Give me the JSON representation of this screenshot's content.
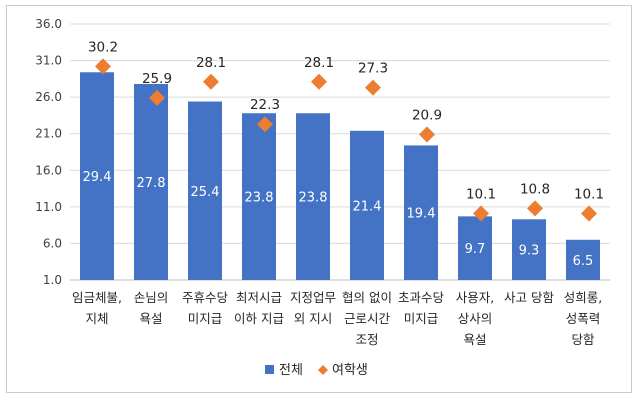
{
  "chart_data": {
    "type": "bar",
    "categories": [
      [
        "임금체불,",
        "지체"
      ],
      [
        "손님의",
        "욕설"
      ],
      [
        "주휴수당",
        "미지급"
      ],
      [
        "최저시급",
        "이하 지급"
      ],
      [
        "지정업무",
        "외 지시"
      ],
      [
        "협의 없이",
        "근로시간",
        "조정"
      ],
      [
        "초과수당",
        "미지급"
      ],
      [
        "사용자,",
        "상사의",
        "욕설"
      ],
      [
        "사고 당함"
      ],
      [
        "성희롱,",
        "성폭력",
        "당함"
      ]
    ],
    "series": [
      {
        "name": "전체",
        "type": "bar",
        "color": "#4472c4",
        "values": [
          29.4,
          27.8,
          25.4,
          23.8,
          23.8,
          21.4,
          19.4,
          9.7,
          9.3,
          6.5
        ]
      },
      {
        "name": "여학생",
        "type": "marker",
        "marker": "diamond",
        "color": "#ed7d31",
        "values": [
          30.2,
          25.9,
          28.1,
          22.3,
          28.1,
          27.3,
          20.9,
          10.1,
          10.8,
          10.1
        ]
      }
    ],
    "ylim": [
      1.0,
      36.0
    ],
    "yticks": [
      "1.0",
      "6.0",
      "11.0",
      "16.0",
      "21.0",
      "26.0",
      "31.0",
      "36.0"
    ],
    "grid": true,
    "legend_position": "bottom",
    "title": "",
    "xlabel": "",
    "ylabel": ""
  }
}
